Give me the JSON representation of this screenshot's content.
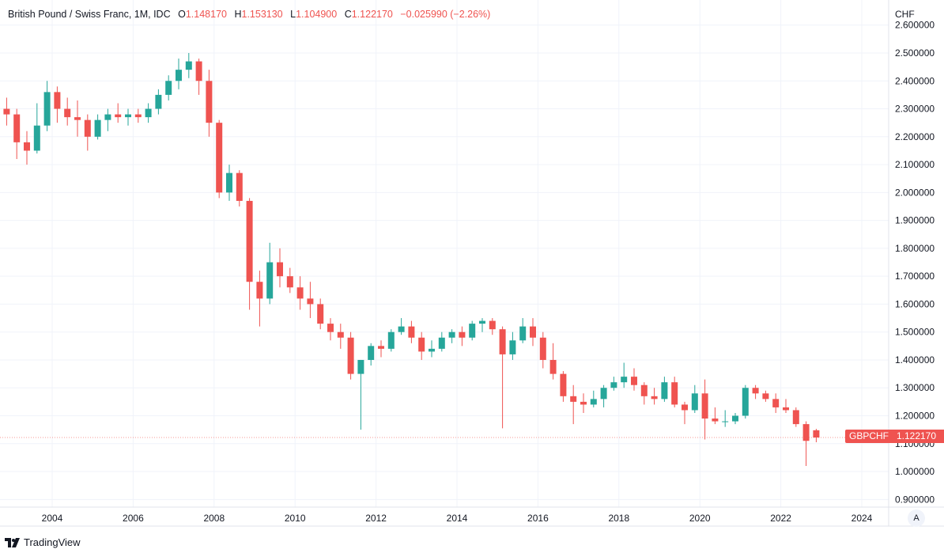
{
  "header": {
    "title": "British Pound / Swiss Franc, 1M, IDC",
    "open_label": "O",
    "open": "1.148170",
    "high_label": "H",
    "high": "1.153130",
    "low_label": "L",
    "low": "1.104900",
    "close_label": "C",
    "close": "1.122170",
    "change": "−0.025990 (−2.26%)"
  },
  "price_axis": {
    "currency": "CHF"
  },
  "symbol_tag": "GBPCHF",
  "last_price": "1.122170",
  "auto_scale_label": "A",
  "footer": {
    "brand": "TradingView"
  },
  "colors": {
    "up": "#26a69a",
    "down": "#ef5350",
    "grid": "#f0f3fa"
  },
  "chart_data": {
    "type": "candlestick",
    "interval": "1M (shown aggregated by quarter)",
    "ylim": [
      0.87,
      2.62
    ],
    "yticks": [
      "2.600000",
      "2.500000",
      "2.400000",
      "2.300000",
      "2.200000",
      "2.100000",
      "2.000000",
      "1.900000",
      "1.800000",
      "1.700000",
      "1.600000",
      "1.500000",
      "1.400000",
      "1.300000",
      "1.200000",
      "1.100000",
      "1.000000",
      "0.900000"
    ],
    "xticks": [
      "2004",
      "2006",
      "2008",
      "2010",
      "2012",
      "2014",
      "2016",
      "2018",
      "2020",
      "2022",
      "2024"
    ],
    "grid": true,
    "candles": [
      [
        "2002-10",
        2.3,
        2.34,
        2.24,
        2.28
      ],
      [
        "2003-01",
        2.28,
        2.3,
        2.12,
        2.18
      ],
      [
        "2003-04",
        2.18,
        2.22,
        2.1,
        2.15
      ],
      [
        "2003-07",
        2.15,
        2.32,
        2.14,
        2.24
      ],
      [
        "2003-10",
        2.24,
        2.4,
        2.22,
        2.36
      ],
      [
        "2004-01",
        2.36,
        2.38,
        2.25,
        2.3
      ],
      [
        "2004-04",
        2.3,
        2.34,
        2.24,
        2.27
      ],
      [
        "2004-07",
        2.27,
        2.33,
        2.2,
        2.26
      ],
      [
        "2004-10",
        2.26,
        2.28,
        2.15,
        2.2
      ],
      [
        "2005-01",
        2.2,
        2.28,
        2.19,
        2.26
      ],
      [
        "2005-04",
        2.26,
        2.3,
        2.22,
        2.28
      ],
      [
        "2005-07",
        2.28,
        2.32,
        2.25,
        2.27
      ],
      [
        "2005-10",
        2.27,
        2.3,
        2.24,
        2.28
      ],
      [
        "2006-01",
        2.28,
        2.3,
        2.25,
        2.27
      ],
      [
        "2006-04",
        2.27,
        2.32,
        2.25,
        2.3
      ],
      [
        "2006-07",
        2.3,
        2.37,
        2.28,
        2.35
      ],
      [
        "2006-10",
        2.35,
        2.42,
        2.33,
        2.4
      ],
      [
        "2007-01",
        2.4,
        2.48,
        2.37,
        2.44
      ],
      [
        "2007-04",
        2.44,
        2.5,
        2.41,
        2.47
      ],
      [
        "2007-07",
        2.47,
        2.48,
        2.35,
        2.4
      ],
      [
        "2007-10",
        2.4,
        2.44,
        2.2,
        2.25
      ],
      [
        "2008-01",
        2.25,
        2.26,
        1.98,
        2.0
      ],
      [
        "2008-04",
        2.0,
        2.1,
        1.97,
        2.07
      ],
      [
        "2008-07",
        2.07,
        2.08,
        1.95,
        1.97
      ],
      [
        "2008-10",
        1.97,
        1.98,
        1.58,
        1.68
      ],
      [
        "2009-01",
        1.68,
        1.72,
        1.52,
        1.62
      ],
      [
        "2009-04",
        1.62,
        1.82,
        1.6,
        1.75
      ],
      [
        "2009-07",
        1.75,
        1.8,
        1.66,
        1.7
      ],
      [
        "2009-10",
        1.7,
        1.73,
        1.64,
        1.66
      ],
      [
        "2010-01",
        1.66,
        1.7,
        1.58,
        1.62
      ],
      [
        "2010-04",
        1.62,
        1.68,
        1.55,
        1.6
      ],
      [
        "2010-07",
        1.6,
        1.62,
        1.51,
        1.53
      ],
      [
        "2010-10",
        1.53,
        1.55,
        1.47,
        1.5
      ],
      [
        "2011-01",
        1.5,
        1.53,
        1.44,
        1.48
      ],
      [
        "2011-04",
        1.48,
        1.5,
        1.33,
        1.35
      ],
      [
        "2011-07",
        1.35,
        1.4,
        1.15,
        1.4
      ],
      [
        "2011-10",
        1.4,
        1.46,
        1.38,
        1.45
      ],
      [
        "2012-01",
        1.45,
        1.47,
        1.41,
        1.44
      ],
      [
        "2012-04",
        1.44,
        1.51,
        1.43,
        1.5
      ],
      [
        "2012-07",
        1.5,
        1.55,
        1.49,
        1.52
      ],
      [
        "2012-10",
        1.52,
        1.54,
        1.46,
        1.48
      ],
      [
        "2013-01",
        1.48,
        1.5,
        1.4,
        1.43
      ],
      [
        "2013-04",
        1.43,
        1.47,
        1.41,
        1.44
      ],
      [
        "2013-07",
        1.44,
        1.5,
        1.43,
        1.48
      ],
      [
        "2013-10",
        1.48,
        1.51,
        1.46,
        1.5
      ],
      [
        "2014-01",
        1.5,
        1.52,
        1.45,
        1.48
      ],
      [
        "2014-04",
        1.48,
        1.54,
        1.47,
        1.53
      ],
      [
        "2014-07",
        1.53,
        1.55,
        1.5,
        1.54
      ],
      [
        "2014-10",
        1.54,
        1.55,
        1.49,
        1.51
      ],
      [
        "2015-01",
        1.51,
        1.52,
        1.155,
        1.42
      ],
      [
        "2015-04",
        1.42,
        1.5,
        1.4,
        1.47
      ],
      [
        "2015-07",
        1.47,
        1.55,
        1.46,
        1.52
      ],
      [
        "2015-10",
        1.52,
        1.55,
        1.45,
        1.48
      ],
      [
        "2016-01",
        1.48,
        1.5,
        1.37,
        1.4
      ],
      [
        "2016-04",
        1.4,
        1.46,
        1.33,
        1.35
      ],
      [
        "2016-07",
        1.35,
        1.36,
        1.25,
        1.27
      ],
      [
        "2016-10",
        1.27,
        1.31,
        1.17,
        1.25
      ],
      [
        "2017-01",
        1.25,
        1.28,
        1.21,
        1.24
      ],
      [
        "2017-04",
        1.24,
        1.29,
        1.23,
        1.26
      ],
      [
        "2017-07",
        1.26,
        1.31,
        1.23,
        1.3
      ],
      [
        "2017-10",
        1.3,
        1.34,
        1.29,
        1.32
      ],
      [
        "2018-01",
        1.32,
        1.39,
        1.3,
        1.34
      ],
      [
        "2018-04",
        1.34,
        1.37,
        1.29,
        1.31
      ],
      [
        "2018-07",
        1.31,
        1.32,
        1.24,
        1.27
      ],
      [
        "2018-10",
        1.27,
        1.3,
        1.24,
        1.26
      ],
      [
        "2019-01",
        1.26,
        1.34,
        1.25,
        1.32
      ],
      [
        "2019-04",
        1.32,
        1.34,
        1.23,
        1.24
      ],
      [
        "2019-07",
        1.24,
        1.25,
        1.17,
        1.22
      ],
      [
        "2019-10",
        1.22,
        1.31,
        1.21,
        1.28
      ],
      [
        "2020-01",
        1.28,
        1.33,
        1.115,
        1.19
      ],
      [
        "2020-04",
        1.19,
        1.23,
        1.17,
        1.18
      ],
      [
        "2020-07",
        1.18,
        1.22,
        1.16,
        1.18
      ],
      [
        "2020-10",
        1.18,
        1.21,
        1.17,
        1.2
      ],
      [
        "2021-01",
        1.2,
        1.31,
        1.19,
        1.3
      ],
      [
        "2021-04",
        1.3,
        1.31,
        1.26,
        1.28
      ],
      [
        "2021-07",
        1.28,
        1.29,
        1.25,
        1.26
      ],
      [
        "2021-10",
        1.26,
        1.28,
        1.21,
        1.23
      ],
      [
        "2022-01",
        1.23,
        1.26,
        1.21,
        1.22
      ],
      [
        "2022-04",
        1.22,
        1.23,
        1.16,
        1.17
      ],
      [
        "2022-07",
        1.17,
        1.18,
        1.02,
        1.11
      ],
      [
        "2022-10",
        1.148,
        1.153,
        1.105,
        1.122
      ]
    ]
  }
}
